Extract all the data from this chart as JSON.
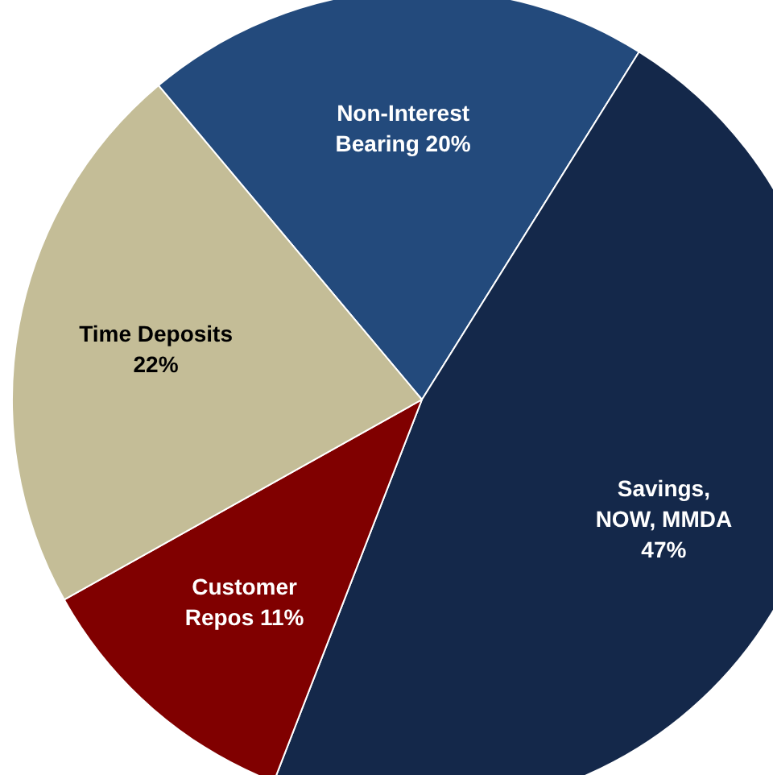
{
  "chart_data": {
    "type": "pie",
    "categories": [
      "Non-Interest Bearing",
      "Savings, NOW, MMDA",
      "Customer Repos",
      "Time Deposits"
    ],
    "values": [
      20,
      47,
      11,
      22
    ],
    "value_labels": [
      "20%",
      "47%",
      "11%",
      "22%"
    ],
    "colors": [
      "#234a7c",
      "#14284a",
      "#800000",
      "#c4bd97"
    ],
    "legend": false
  }
}
